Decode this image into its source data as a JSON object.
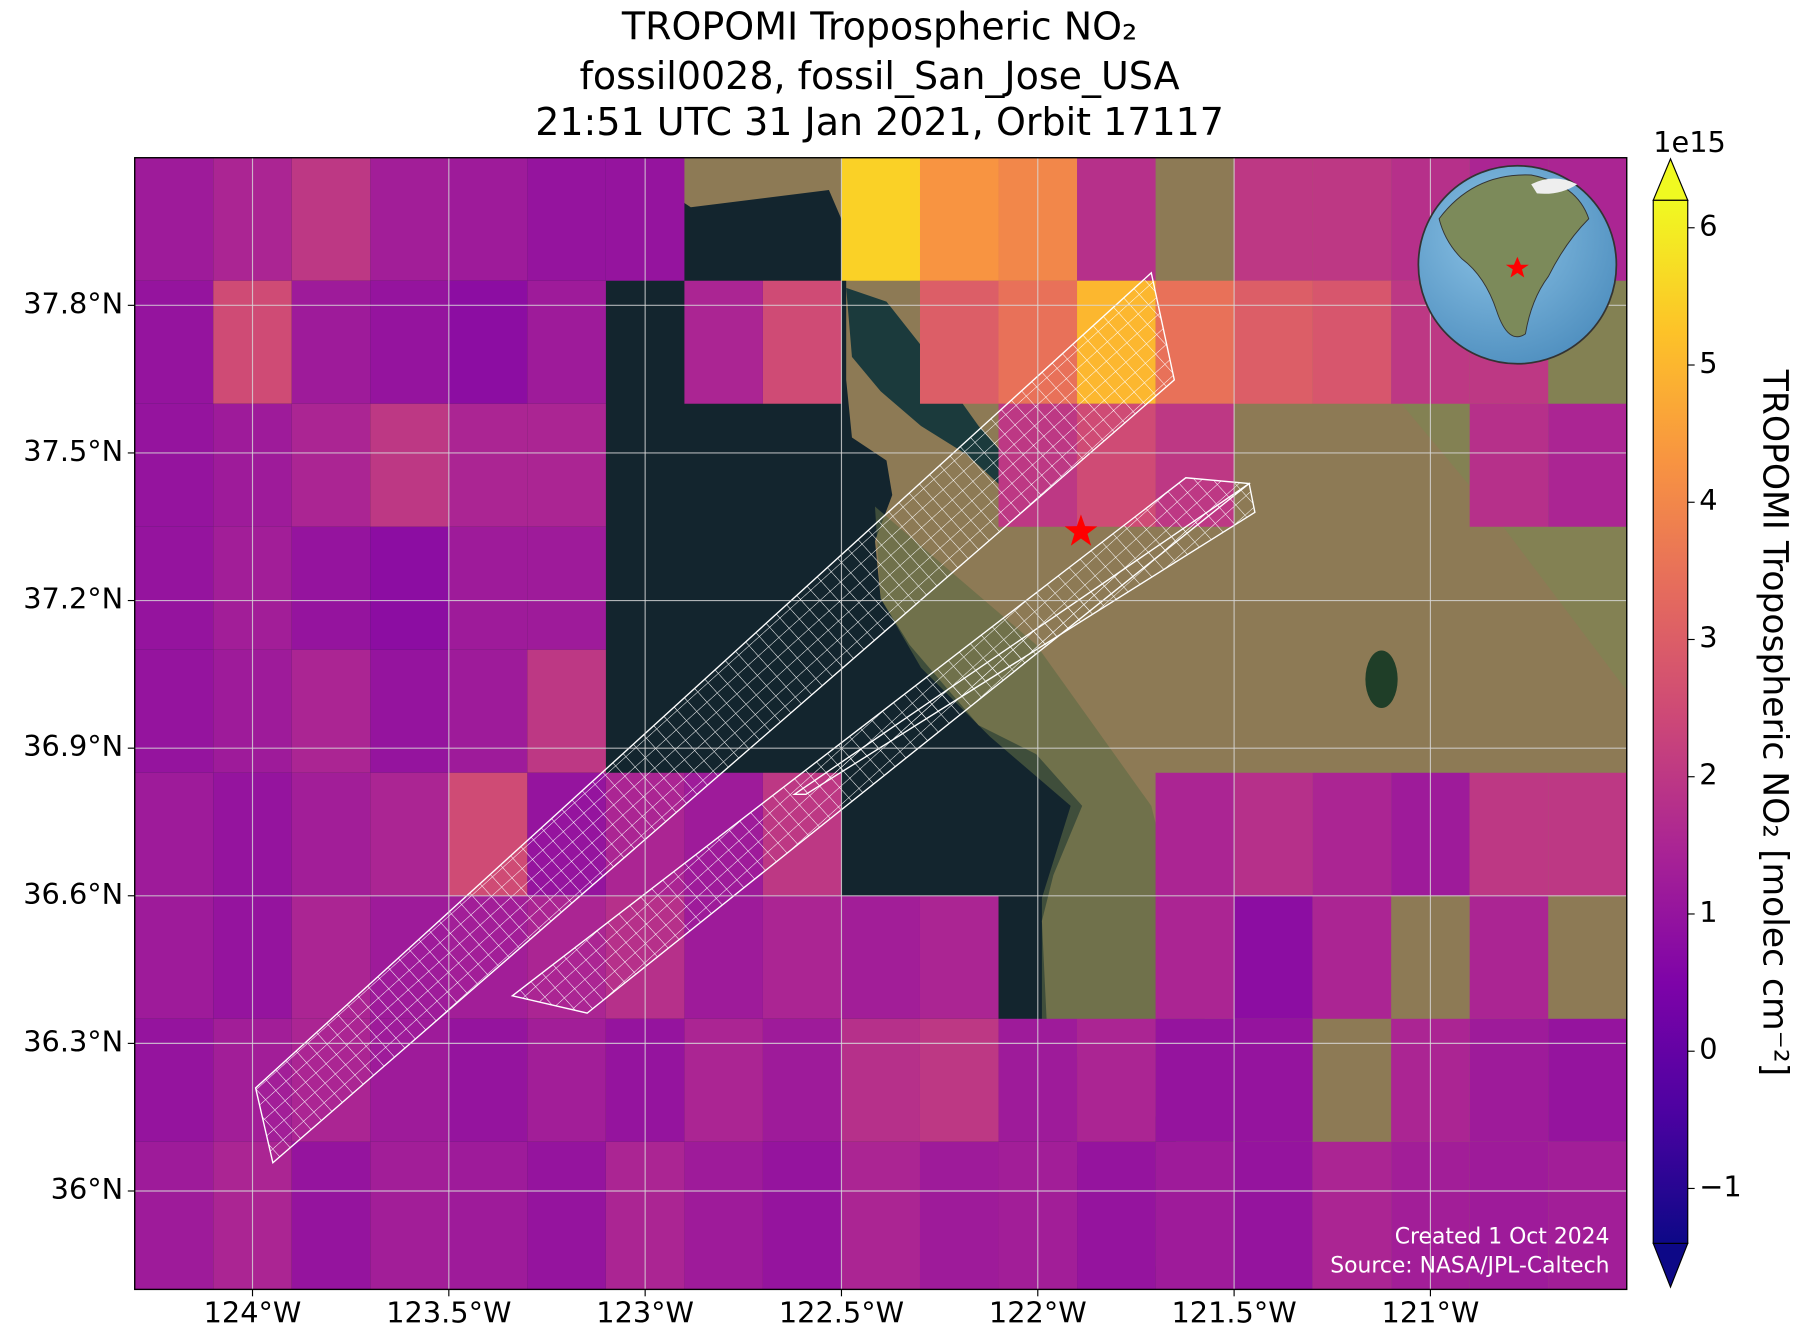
{
  "chart_data": {
    "type": "map",
    "title": [
      "TROPOMI Tropospheric NO₂",
      "fossil0028, fossil_San_Jose_USA",
      "21:51 UTC 31 Jan 2021, Orbit 17117"
    ],
    "xlim": [
      -124.3,
      -120.5
    ],
    "ylim": [
      35.8,
      38.1
    ],
    "xticks": [
      {
        "value": -124,
        "label": "124°W"
      },
      {
        "value": -123.5,
        "label": "123.5°W"
      },
      {
        "value": -123,
        "label": "123°W"
      },
      {
        "value": -122.5,
        "label": "122.5°W"
      },
      {
        "value": -122,
        "label": "122°W"
      },
      {
        "value": -121.5,
        "label": "121.5°W"
      },
      {
        "value": -121,
        "label": "121°W"
      }
    ],
    "yticks": [
      {
        "value": 37.8,
        "label": "37.8°N"
      },
      {
        "value": 37.5,
        "label": "37.5°N"
      },
      {
        "value": 37.2,
        "label": "37.2°N"
      },
      {
        "value": 36.9,
        "label": "36.9°N"
      },
      {
        "value": 36.6,
        "label": "36.6°N"
      },
      {
        "value": 36.3,
        "label": "36.3°N"
      },
      {
        "value": 36,
        "label": "36°N"
      }
    ],
    "grid": true,
    "x_edges": [
      -124.3,
      -124.1,
      -123.9,
      -123.7,
      -123.5,
      -123.3,
      -123.1,
      -122.9,
      -122.7,
      -122.5,
      -122.3,
      -122.1,
      -121.9,
      -121.7,
      -121.5,
      -121.3,
      -121.1,
      -120.9,
      -120.7,
      -120.5
    ],
    "y_edges": [
      38.1,
      37.85,
      37.6,
      37.35,
      37.1,
      36.85,
      36.6,
      36.35,
      36.1,
      35.8
    ],
    "values": [
      [
        1.2,
        1.5,
        2.0,
        1.3,
        1.2,
        1.0,
        1.0,
        null,
        null,
        5.5,
        4.3,
        4.0,
        1.8,
        null,
        2.0,
        2.0,
        1.8,
        1.5,
        1.5
      ],
      [
        1.0,
        2.5,
        1.2,
        1.0,
        0.8,
        1.2,
        null,
        1.5,
        2.5,
        null,
        3.0,
        3.5,
        5.0,
        3.5,
        3.0,
        2.8,
        2.0,
        2.0,
        null
      ],
      [
        1.0,
        1.2,
        1.5,
        2.0,
        1.5,
        1.5,
        null,
        null,
        null,
        null,
        null,
        2.0,
        2.5,
        2.0,
        null,
        null,
        null,
        1.8,
        1.5
      ],
      [
        1.0,
        1.3,
        1.0,
        0.8,
        1.2,
        1.2,
        null,
        null,
        null,
        null,
        null,
        null,
        null,
        null,
        null,
        null,
        null,
        null,
        null
      ],
      [
        1.0,
        1.2,
        1.5,
        1.0,
        1.2,
        2.0,
        null,
        null,
        null,
        null,
        null,
        null,
        null,
        null,
        null,
        null,
        null,
        null,
        null
      ],
      [
        1.2,
        1.0,
        1.3,
        1.5,
        2.5,
        1.0,
        1.5,
        1.2,
        2.0,
        null,
        null,
        null,
        null,
        1.5,
        1.8,
        1.5,
        1.2,
        2.0,
        2.0
      ],
      [
        1.2,
        1.0,
        1.5,
        1.2,
        1.3,
        1.5,
        1.8,
        1.2,
        1.5,
        1.3,
        1.5,
        null,
        null,
        1.5,
        0.8,
        1.5,
        null,
        1.5,
        null
      ],
      [
        1.0,
        1.3,
        1.5,
        1.2,
        1.0,
        1.3,
        1.0,
        1.5,
        1.2,
        1.8,
        2.0,
        1.2,
        1.5,
        1.0,
        1.0,
        null,
        1.5,
        1.2,
        1.0
      ],
      [
        1.2,
        1.5,
        1.0,
        1.3,
        1.2,
        1.0,
        1.5,
        1.2,
        1.0,
        1.5,
        1.2,
        1.3,
        1.0,
        1.2,
        1.0,
        1.5,
        1.3,
        1.2,
        1.3
      ]
    ],
    "marker": {
      "lon": -121.89,
      "lat": 37.34,
      "color": "#ff0000"
    },
    "colormap": [
      "#0d0887",
      "#4c02a1",
      "#7e03a8",
      "#a92395",
      "#cc4778",
      "#e56b5d",
      "#f89441",
      "#fdc328",
      "#f0f921"
    ],
    "clim": [
      -1.4,
      6.2
    ],
    "cticks": [
      {
        "value": -1,
        "label": "−1"
      },
      0,
      1,
      2,
      3,
      4,
      5,
      6
    ],
    "colorbar_label": "TROPOMI Tropospheric NO₂ [molec cm⁻²]",
    "colorbar_exponent": "1e15",
    "footer": [
      "Created 1 Oct 2024",
      "Source: NASA/JPL-Caltech"
    ]
  }
}
